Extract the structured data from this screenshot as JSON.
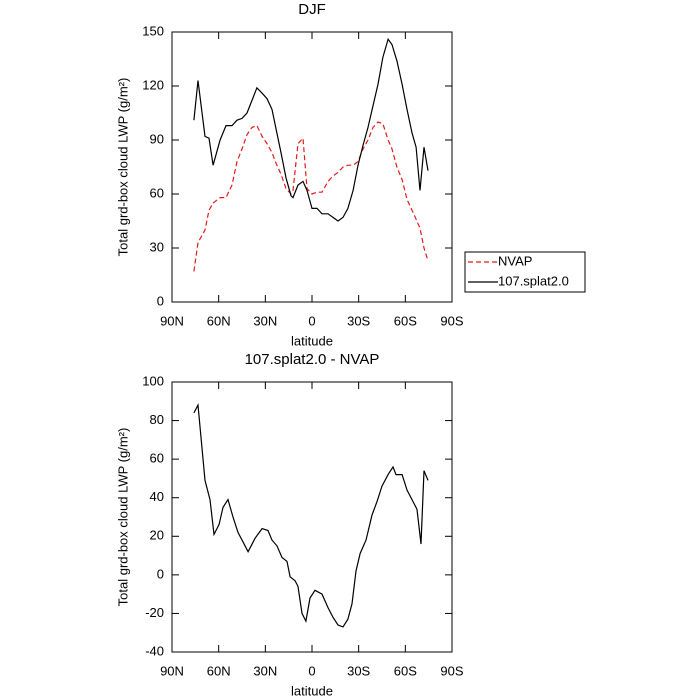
{
  "chart_data": [
    {
      "type": "line",
      "title": "DJF",
      "xlabel": "latitude",
      "ylabel": "Total grd-box cloud LWP (g/m²)",
      "x": [
        75.9,
        73.3,
        68.8,
        66.2,
        63.6,
        59.1,
        55.3,
        51.4,
        48.2,
        45.0,
        41.8,
        38.6,
        35.4,
        32.1,
        28.9,
        25.7,
        23.1,
        19.9,
        16.7,
        13.5,
        12.2,
        9.0,
        5.8,
        3.2,
        0,
        -3.2,
        -6.4,
        -10.3,
        -13.5,
        -16.7,
        -19.9,
        -23.1,
        -26.4,
        -29.6,
        -32.8,
        -36.0,
        -39.2,
        -42.4,
        -45.6,
        -48.9,
        -51.4,
        -54.6,
        -57.9,
        -61.1,
        -64.3,
        -66.9,
        -69.4,
        -72.0,
        -74.6
      ],
      "series": [
        {
          "name": "NVAP",
          "color": "#e41a1c",
          "line_style": "dashed",
          "values": [
            17,
            33,
            40,
            51,
            55,
            58,
            58,
            65,
            78,
            85,
            93,
            97,
            98,
            92,
            88,
            83,
            77,
            71,
            63,
            60,
            62,
            88,
            91,
            63,
            60,
            61,
            61,
            67,
            70,
            72,
            75,
            76,
            76,
            78,
            85,
            90,
            97,
            100,
            99,
            90,
            85,
            75,
            68,
            57,
            51,
            46,
            41,
            30,
            23
          ]
        },
        {
          "name": "107.splat2.0",
          "color": "#000000",
          "line_style": "solid",
          "values": [
            101,
            123,
            92,
            91,
            76,
            90,
            98,
            98,
            101,
            102,
            105,
            112,
            119,
            116,
            113,
            107,
            96,
            83,
            69,
            59,
            58,
            65,
            67,
            62,
            52,
            52,
            49,
            49,
            47,
            45,
            47,
            52,
            62,
            76,
            87,
            97,
            109,
            121,
            136,
            146,
            143,
            134,
            121,
            107,
            94,
            86,
            62,
            86,
            73
          ]
        }
      ],
      "xlim": [
        90,
        -90
      ],
      "xticks": [
        {
          "value": 90,
          "label": "90N"
        },
        {
          "value": 60,
          "label": "60N"
        },
        {
          "value": 30,
          "label": "30N"
        },
        0,
        {
          "value": -30,
          "label": "30S"
        },
        {
          "value": -60,
          "label": "60S"
        },
        {
          "value": -90,
          "label": "90S"
        }
      ],
      "ylim": [
        0,
        150
      ],
      "yticks": [
        0,
        30,
        60,
        90,
        120,
        150
      ],
      "legend": "outside-right"
    },
    {
      "type": "line",
      "title": "107.splat2.0 - NVAP",
      "xlabel": "latitude",
      "ylabel": "Total grd-box cloud LWP (g/m²)",
      "x": [
        75.9,
        73.3,
        68.8,
        65.6,
        63.0,
        59.8,
        57.2,
        54.0,
        50.8,
        47.6,
        41.1,
        36.6,
        32.1,
        28.3,
        25.7,
        22.5,
        19.3,
        16.1,
        14.1,
        10.9,
        9.0,
        6.4,
        3.9,
        1.3,
        -1.9,
        -6.4,
        -10.3,
        -13.5,
        -16.7,
        -19.9,
        -23.1,
        -25.7,
        -28.3,
        -30.9,
        -34.7,
        -38.6,
        -41.8,
        -45.0,
        -48.9,
        -52.1,
        -54.0,
        -57.9,
        -61.1,
        -64.3,
        -67.5,
        -70.1,
        -72.0,
        -74.6
      ],
      "series": [
        {
          "color": "#000000",
          "line_style": "solid",
          "values": [
            84,
            88,
            49,
            39,
            21,
            26,
            35,
            39,
            30,
            22,
            12,
            19,
            24,
            23,
            18,
            15,
            9,
            7,
            -1,
            -3,
            -6,
            -20,
            -24,
            -12,
            -8,
            -10,
            -17,
            -22,
            -26,
            -27,
            -23,
            -15,
            2,
            11,
            18,
            31,
            38,
            46,
            52,
            56,
            52,
            52,
            44,
            39,
            34,
            16,
            54,
            49
          ]
        }
      ],
      "xlim": [
        90,
        -90
      ],
      "xticks": [
        {
          "value": 90,
          "label": "90N"
        },
        {
          "value": 60,
          "label": "60N"
        },
        {
          "value": 30,
          "label": "30N"
        },
        0,
        {
          "value": -30,
          "label": "30S"
        },
        {
          "value": -60,
          "label": "60S"
        },
        {
          "value": -90,
          "label": "90S"
        }
      ],
      "ylim": [
        -40,
        100
      ],
      "yticks": [
        -40,
        -20,
        0,
        20,
        40,
        60,
        80,
        100
      ]
    }
  ]
}
